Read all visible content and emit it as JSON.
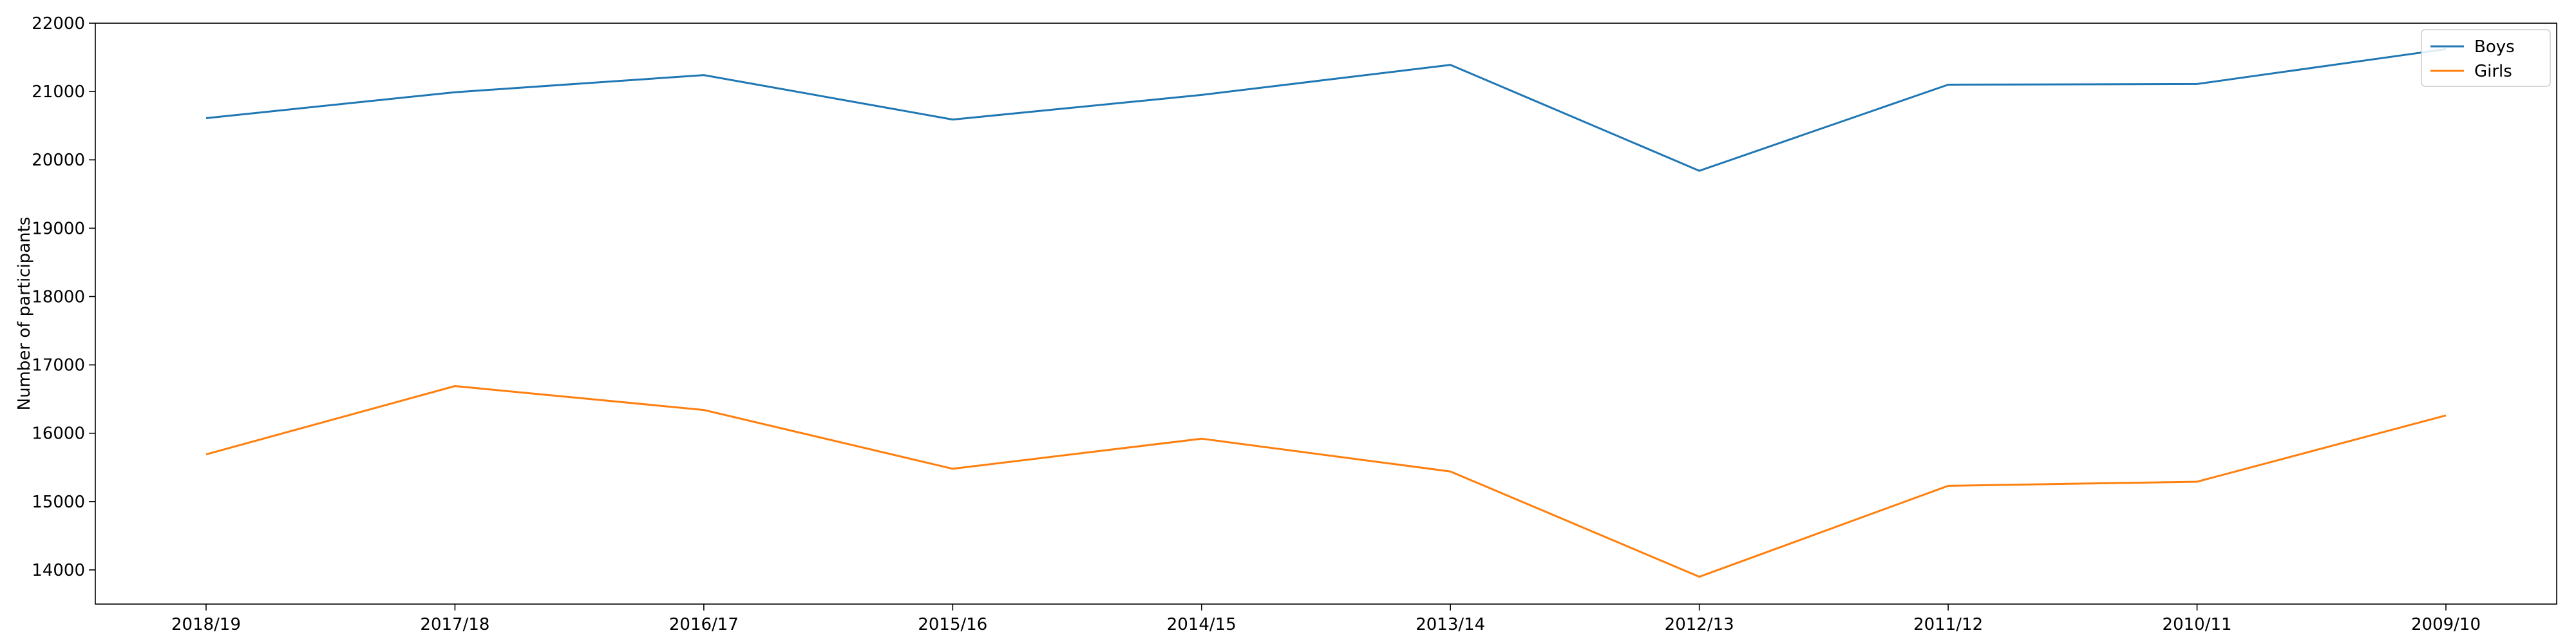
{
  "chart_data": {
    "type": "line",
    "categories": [
      "2018/19",
      "2017/18",
      "2016/17",
      "2015/16",
      "2014/15",
      "2013/14",
      "2012/13",
      "2011/12",
      "2010/11",
      "2009/10"
    ],
    "series": [
      {
        "name": "Boys",
        "color": "#1f77b4",
        "values": [
          20610,
          20990,
          21240,
          20590,
          20950,
          21390,
          19840,
          21100,
          21110,
          21620
        ]
      },
      {
        "name": "Girls",
        "color": "#ff7f0e",
        "values": [
          15690,
          16690,
          16340,
          15480,
          15920,
          15440,
          13900,
          15230,
          15290,
          16260
        ]
      }
    ],
    "title": "",
    "xlabel": "",
    "ylabel": "Number of participants",
    "ylim": [
      13500,
      22000
    ],
    "yticks": [
      14000,
      15000,
      16000,
      17000,
      18000,
      19000,
      20000,
      21000,
      22000
    ],
    "grid": false,
    "legend_position": "top-right"
  }
}
